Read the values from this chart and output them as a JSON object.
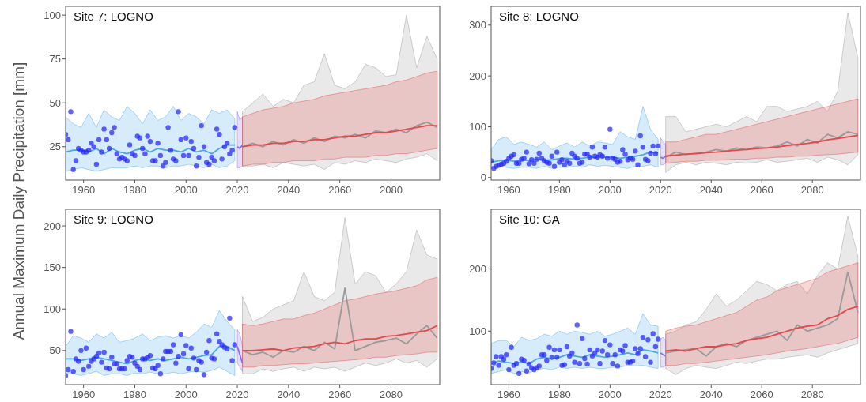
{
  "chart_data": [
    {
      "type": "line",
      "title": "Site 7: LOGNO",
      "ylabel": "Annual Maximum Daily Precipitation [mm]",
      "xlim": [
        1953,
        2099
      ],
      "xticks": [
        1960,
        1980,
        2000,
        2020,
        2040,
        2060,
        2080
      ],
      "ylim": [
        6,
        105
      ],
      "yticks": [
        25,
        50,
        75,
        100
      ],
      "series": [
        {
          "type": "line",
          "color": "#4aa8e8",
          "x": [
            1953,
            1956,
            1959,
            1962,
            1965,
            1968,
            1971,
            1974,
            1977,
            1980,
            1983,
            1986,
            1989,
            1992,
            1995,
            1998,
            2001,
            2004,
            2007,
            2010,
            2013,
            2016,
            2019
          ],
          "values": [
            22,
            23,
            23,
            22,
            24,
            21,
            24,
            22,
            21,
            23,
            24,
            22,
            24,
            23,
            23,
            22,
            24,
            22,
            23,
            21,
            24,
            26,
            26
          ],
          "lower": [
            11,
            12,
            13,
            12,
            11,
            12,
            13,
            13,
            13,
            14,
            13,
            14,
            14,
            13,
            14,
            14,
            15,
            14,
            13,
            15,
            13,
            14,
            17
          ],
          "upper": [
            42,
            38,
            36,
            44,
            36,
            46,
            42,
            40,
            48,
            44,
            38,
            46,
            40,
            42,
            48,
            40,
            44,
            42,
            38,
            46,
            44,
            46,
            41
          ]
        },
        {
          "type": "line",
          "color": "#8a6cf0",
          "x": [
            2020,
            2021,
            2022
          ],
          "values": [
            25,
            24,
            26
          ],
          "lower": [
            13,
            13,
            14
          ],
          "upper": [
            45,
            40,
            42
          ]
        },
        {
          "type": "line",
          "color": "#9a9a9a",
          "x": [
            2022,
            2026,
            2030,
            2034,
            2038,
            2042,
            2046,
            2050,
            2054,
            2058,
            2062,
            2066,
            2070,
            2074,
            2078,
            2082,
            2086,
            2090,
            2094,
            2098
          ],
          "values": [
            25,
            27,
            25,
            28,
            26,
            29,
            27,
            30,
            28,
            31,
            30,
            32,
            30,
            34,
            33,
            35,
            33,
            37,
            39,
            36
          ],
          "lower": [
            14,
            14,
            15,
            13,
            16,
            15,
            14,
            15,
            12,
            16,
            15,
            17,
            16,
            18,
            17,
            16,
            18,
            19,
            21,
            17
          ],
          "upper": [
            45,
            50,
            55,
            48,
            52,
            50,
            60,
            62,
            78,
            60,
            58,
            62,
            72,
            70,
            65,
            66,
            100,
            70,
            88,
            75
          ]
        },
        {
          "type": "line",
          "color": "#e8474a",
          "x": [
            2022,
            2026,
            2030,
            2034,
            2038,
            2042,
            2046,
            2050,
            2054,
            2058,
            2062,
            2066,
            2070,
            2074,
            2078,
            2082,
            2086,
            2090,
            2094,
            2098
          ],
          "values": [
            25,
            26,
            26,
            27,
            27,
            28,
            28,
            29,
            29,
            30,
            31,
            31,
            32,
            33,
            33,
            34,
            35,
            36,
            37,
            37
          ],
          "lower": [
            14,
            15,
            15,
            16,
            16,
            17,
            17,
            17,
            18,
            18,
            19,
            19,
            19,
            20,
            20,
            21,
            21,
            22,
            23,
            24
          ],
          "upper": [
            42,
            44,
            46,
            47,
            48,
            50,
            51,
            52,
            54,
            55,
            56,
            57,
            58,
            59,
            60,
            62,
            63,
            65,
            67,
            68
          ]
        },
        {
          "type": "scatter",
          "color": "#2222ff",
          "marker": "circle",
          "x": [
            1953,
            1954,
            1955,
            1956,
            1957,
            1958,
            1959,
            1960,
            1961,
            1962,
            1963,
            1964,
            1965,
            1966,
            1967,
            1968,
            1969,
            1970,
            1971,
            1972,
            1973,
            1974,
            1975,
            1976,
            1977,
            1978,
            1979,
            1980,
            1981,
            1982,
            1983,
            1984,
            1985,
            1986,
            1987,
            1988,
            1989,
            1990,
            1991,
            1992,
            1993,
            1994,
            1995,
            1996,
            1997,
            1998,
            1999,
            2000,
            2001,
            2002,
            2003,
            2004,
            2005,
            2006,
            2007,
            2008,
            2009,
            2010,
            2011,
            2012,
            2013,
            2014,
            2015,
            2016,
            2017,
            2018,
            2019
          ],
          "values": [
            32,
            29,
            45,
            12,
            17,
            24,
            23,
            22,
            22,
            23,
            27,
            25,
            15,
            29,
            22,
            35,
            29,
            24,
            33,
            36,
            21,
            18,
            19,
            18,
            17,
            26,
            21,
            20,
            31,
            30,
            24,
            21,
            31,
            28,
            17,
            17,
            27,
            20,
            14,
            16,
            36,
            23,
            18,
            17,
            45,
            29,
            20,
            30,
            20,
            28,
            24,
            14,
            19,
            37,
            25,
            16,
            15,
            19,
            17,
            35,
            32,
            18,
            25,
            27,
            21,
            23,
            36
          ]
        }
      ]
    },
    {
      "type": "line",
      "title": "Site 8: LOGNO",
      "xlim": [
        1953,
        2099
      ],
      "xticks": [
        1960,
        1980,
        2000,
        2020,
        2040,
        2060,
        2080
      ],
      "ylim": [
        -5,
        337
      ],
      "yticks": [
        0,
        100,
        200,
        300
      ],
      "series": [
        {
          "type": "line",
          "color": "#4aa8e8",
          "x": [
            1953,
            1956,
            1959,
            1962,
            1965,
            1968,
            1971,
            1974,
            1977,
            1980,
            1983,
            1986,
            1989,
            1992,
            1995,
            1998,
            2001,
            2004,
            2007,
            2010,
            2013,
            2016,
            2019
          ],
          "values": [
            30,
            33,
            34,
            32,
            35,
            33,
            36,
            34,
            35,
            37,
            38,
            36,
            38,
            40,
            39,
            40,
            40,
            38,
            40,
            42,
            45,
            50,
            48
          ],
          "lower": [
            18,
            22,
            20,
            18,
            20,
            20,
            18,
            22,
            18,
            20,
            20,
            22,
            20,
            25,
            22,
            24,
            22,
            20,
            18,
            22,
            22,
            25,
            20
          ],
          "upper": [
            55,
            75,
            80,
            65,
            70,
            65,
            60,
            70,
            55,
            62,
            68,
            60,
            70,
            62,
            70,
            68,
            65,
            90,
            80,
            75,
            140,
            95,
            75
          ]
        },
        {
          "type": "line",
          "color": "#8a6cf0",
          "x": [
            2020,
            2021,
            2022
          ],
          "values": [
            40,
            38,
            42
          ],
          "lower": [
            25,
            25,
            28
          ],
          "upper": [
            78,
            70,
            65
          ]
        },
        {
          "type": "line",
          "color": "#9a9a9a",
          "x": [
            2022,
            2026,
            2030,
            2034,
            2038,
            2042,
            2046,
            2050,
            2054,
            2058,
            2062,
            2066,
            2070,
            2074,
            2078,
            2082,
            2086,
            2090,
            2094,
            2098
          ],
          "values": [
            40,
            50,
            45,
            48,
            50,
            55,
            52,
            58,
            55,
            60,
            58,
            62,
            70,
            62,
            75,
            68,
            85,
            78,
            90,
            85
          ],
          "lower": [
            10,
            25,
            30,
            25,
            30,
            28,
            25,
            30,
            28,
            30,
            35,
            30,
            32,
            35,
            38,
            30,
            40,
            35,
            25,
            45
          ],
          "upper": [
            120,
            120,
            90,
            95,
            100,
            105,
            100,
            110,
            120,
            110,
            140,
            140,
            130,
            135,
            140,
            150,
            130,
            170,
            325,
            235
          ]
        },
        {
          "type": "line",
          "color": "#e8474a",
          "x": [
            2022,
            2026,
            2030,
            2034,
            2038,
            2042,
            2046,
            2050,
            2054,
            2058,
            2062,
            2066,
            2070,
            2074,
            2078,
            2082,
            2086,
            2090,
            2094,
            2098
          ],
          "values": [
            42,
            44,
            46,
            47,
            49,
            50,
            52,
            54,
            55,
            57,
            58,
            60,
            63,
            65,
            67,
            70,
            74,
            77,
            80,
            83
          ],
          "lower": [
            28,
            30,
            32,
            32,
            34,
            34,
            35,
            36,
            36,
            38,
            38,
            40,
            40,
            42,
            42,
            44,
            45,
            46,
            48,
            50
          ],
          "upper": [
            70,
            70,
            75,
            80,
            85,
            85,
            90,
            95,
            100,
            105,
            110,
            115,
            120,
            125,
            130,
            135,
            140,
            145,
            150,
            155
          ]
        },
        {
          "type": "scatter",
          "color": "#2222ff",
          "marker": "circle",
          "x": [
            1953,
            1954,
            1955,
            1956,
            1957,
            1958,
            1959,
            1960,
            1961,
            1962,
            1963,
            1964,
            1965,
            1966,
            1967,
            1968,
            1969,
            1970,
            1971,
            1972,
            1973,
            1974,
            1975,
            1976,
            1977,
            1978,
            1979,
            1980,
            1981,
            1982,
            1983,
            1984,
            1985,
            1986,
            1987,
            1988,
            1989,
            1990,
            1991,
            1992,
            1993,
            1994,
            1995,
            1996,
            1997,
            1998,
            1999,
            2000,
            2001,
            2002,
            2003,
            2004,
            2005,
            2006,
            2007,
            2008,
            2009,
            2010,
            2011,
            2012,
            2013,
            2014,
            2015,
            2016,
            2017,
            2018,
            2019
          ],
          "values": [
            33,
            18,
            22,
            24,
            26,
            28,
            32,
            38,
            42,
            45,
            28,
            28,
            36,
            38,
            50,
            27,
            35,
            28,
            36,
            48,
            38,
            33,
            30,
            28,
            42,
            22,
            50,
            30,
            35,
            25,
            32,
            28,
            48,
            42,
            38,
            28,
            30,
            46,
            46,
            40,
            60,
            42,
            40,
            45,
            42,
            60,
            38,
            95,
            38,
            36,
            30,
            32,
            55,
            46,
            35,
            38,
            36,
            52,
            25,
            82,
            60,
            36,
            33,
            48,
            62,
            47,
            62
          ]
        }
      ]
    },
    {
      "type": "line",
      "title": "Site 9: LOGNO",
      "xlim": [
        1953,
        2099
      ],
      "xticks": [
        1960,
        1980,
        2000,
        2020,
        2040,
        2060,
        2080
      ],
      "ylim": [
        9,
        220
      ],
      "yticks": [
        50,
        100,
        150,
        200
      ],
      "series": [
        {
          "type": "line",
          "color": "#4aa8e8",
          "x": [
            1953,
            1956,
            1959,
            1962,
            1965,
            1968,
            1971,
            1974,
            1977,
            1980,
            1983,
            1986,
            1989,
            1992,
            1995,
            1998,
            2001,
            2004,
            2007,
            2010,
            2013,
            2016,
            2019
          ],
          "values": [
            40,
            40,
            38,
            40,
            42,
            40,
            38,
            36,
            34,
            38,
            40,
            38,
            40,
            38,
            40,
            42,
            40,
            42,
            44,
            45,
            55,
            55,
            50
          ],
          "lower": [
            22,
            22,
            20,
            22,
            25,
            20,
            22,
            22,
            20,
            23,
            22,
            24,
            22,
            22,
            24,
            22,
            24,
            25,
            24,
            26,
            30,
            25,
            20
          ],
          "upper": [
            55,
            68,
            65,
            60,
            70,
            65,
            72,
            60,
            62,
            65,
            70,
            62,
            66,
            68,
            65,
            68,
            65,
            72,
            82,
            78,
            98,
            85,
            75
          ]
        },
        {
          "type": "line",
          "color": "#8a6cf0",
          "x": [
            2020,
            2021,
            2022
          ],
          "values": [
            55,
            45,
            35
          ],
          "lower": [
            35,
            30,
            25
          ],
          "upper": [
            75,
            70,
            55
          ]
        },
        {
          "type": "line",
          "color": "#9a9a9a",
          "x": [
            2022,
            2026,
            2030,
            2034,
            2038,
            2042,
            2046,
            2050,
            2054,
            2058,
            2062,
            2066,
            2070,
            2074,
            2078,
            2082,
            2086,
            2090,
            2094,
            2098
          ],
          "values": [
            50,
            45,
            48,
            42,
            50,
            48,
            55,
            50,
            60,
            52,
            125,
            50,
            55,
            60,
            62,
            65,
            58,
            70,
            80,
            65
          ],
          "lower": [
            22,
            22,
            28,
            25,
            28,
            30,
            25,
            30,
            28,
            30,
            25,
            30,
            35,
            32,
            35,
            40,
            35,
            38,
            30,
            40
          ],
          "upper": [
            115,
            85,
            90,
            100,
            105,
            110,
            145,
            115,
            110,
            120,
            210,
            130,
            145,
            140,
            120,
            130,
            145,
            195,
            165,
            160
          ]
        },
        {
          "type": "line",
          "color": "#e8474a",
          "x": [
            2022,
            2026,
            2030,
            2034,
            2038,
            2042,
            2046,
            2050,
            2054,
            2058,
            2062,
            2066,
            2070,
            2074,
            2078,
            2082,
            2086,
            2090,
            2094,
            2098
          ],
          "values": [
            50,
            50,
            51,
            52,
            50,
            53,
            54,
            55,
            58,
            60,
            58,
            62,
            64,
            64,
            67,
            68,
            70,
            72,
            74,
            80
          ],
          "lower": [
            30,
            30,
            32,
            32,
            33,
            34,
            34,
            35,
            36,
            37,
            38,
            39,
            40,
            42,
            42,
            44,
            45,
            46,
            48,
            48
          ],
          "upper": [
            82,
            80,
            82,
            85,
            88,
            88,
            92,
            95,
            100,
            105,
            110,
            112,
            115,
            118,
            120,
            122,
            125,
            128,
            135,
            138
          ]
        },
        {
          "type": "scatter",
          "color": "#2222ff",
          "marker": "circle",
          "x": [
            1953,
            1954,
            1955,
            1956,
            1957,
            1958,
            1959,
            1960,
            1961,
            1962,
            1963,
            1964,
            1965,
            1966,
            1967,
            1968,
            1969,
            1970,
            1971,
            1972,
            1973,
            1974,
            1975,
            1976,
            1977,
            1978,
            1979,
            1980,
            1981,
            1982,
            1983,
            1984,
            1985,
            1986,
            1987,
            1988,
            1989,
            1990,
            1991,
            1992,
            1993,
            1994,
            1995,
            1996,
            1997,
            1998,
            1999,
            2000,
            2001,
            2002,
            2003,
            2004,
            2005,
            2006,
            2007,
            2008,
            2009,
            2010,
            2011,
            2012,
            2013,
            2014,
            2015,
            2016,
            2017,
            2018,
            2019
          ],
          "values": [
            20,
            27,
            73,
            25,
            40,
            37,
            50,
            27,
            53,
            31,
            37,
            40,
            43,
            47,
            36,
            48,
            29,
            28,
            42,
            34,
            34,
            28,
            28,
            28,
            38,
            43,
            42,
            35,
            31,
            27,
            40,
            40,
            42,
            44,
            29,
            28,
            32,
            22,
            40,
            49,
            49,
            49,
            57,
            35,
            43,
            69,
            46,
            56,
            28,
            53,
            41,
            27,
            38,
            36,
            21,
            48,
            62,
            41,
            40,
            70,
            61,
            57,
            54,
            52,
            89,
            38,
            57
          ]
        }
      ]
    },
    {
      "type": "line",
      "title": "Site 10: GA",
      "xlim": [
        1953,
        2099
      ],
      "xticks": [
        1960,
        1980,
        2000,
        2020,
        2040,
        2060,
        2080
      ],
      "ylim": [
        14,
        296
      ],
      "yticks": [
        100,
        200
      ],
      "series": [
        {
          "type": "line",
          "color": "#4aa8e8",
          "x": [
            1953,
            1956,
            1959,
            1962,
            1965,
            1968,
            1971,
            1974,
            1977,
            1980,
            1983,
            1986,
            1989,
            1992,
            1995,
            1998,
            2001,
            2004,
            2007,
            2010,
            2013,
            2016,
            2019
          ],
          "values": [
            48,
            52,
            50,
            48,
            50,
            48,
            55,
            58,
            55,
            58,
            62,
            60,
            58,
            62,
            60,
            58,
            60,
            62,
            65,
            62,
            70,
            68,
            65
          ],
          "lower": [
            32,
            35,
            38,
            32,
            35,
            33,
            38,
            40,
            38,
            42,
            40,
            42,
            40,
            42,
            40,
            40,
            42,
            42,
            45,
            44,
            45,
            42,
            40
          ],
          "upper": [
            80,
            85,
            85,
            75,
            90,
            85,
            88,
            95,
            92,
            100,
            95,
            100,
            98,
            95,
            100,
            92,
            95,
            100,
            105,
            95,
            128,
            110,
            108
          ]
        },
        {
          "type": "line",
          "color": "#8a6cf0",
          "x": [
            2020,
            2021,
            2022
          ],
          "values": [
            65,
            62,
            60
          ],
          "lower": [
            42,
            42,
            44
          ],
          "upper": [
            88,
            90,
            85
          ]
        },
        {
          "type": "line",
          "color": "#9a9a9a",
          "x": [
            2022,
            2026,
            2030,
            2034,
            2038,
            2042,
            2046,
            2050,
            2054,
            2058,
            2062,
            2066,
            2070,
            2074,
            2078,
            2082,
            2086,
            2090,
            2094,
            2098
          ],
          "values": [
            65,
            68,
            70,
            72,
            60,
            75,
            80,
            75,
            85,
            90,
            95,
            100,
            85,
            110,
            100,
            105,
            110,
            120,
            195,
            130
          ],
          "lower": [
            40,
            30,
            40,
            45,
            42,
            40,
            45,
            50,
            48,
            52,
            55,
            55,
            58,
            60,
            62,
            58,
            65,
            70,
            75,
            80
          ],
          "upper": [
            95,
            100,
            110,
            115,
            135,
            160,
            140,
            150,
            165,
            180,
            175,
            165,
            175,
            180,
            160,
            190,
            210,
            200,
            285,
            220
          ]
        },
        {
          "type": "line",
          "color": "#e8474a",
          "x": [
            2022,
            2026,
            2030,
            2034,
            2038,
            2042,
            2046,
            2050,
            2054,
            2058,
            2062,
            2066,
            2070,
            2074,
            2078,
            2082,
            2086,
            2090,
            2094,
            2098
          ],
          "values": [
            68,
            70,
            68,
            72,
            75,
            75,
            78,
            80,
            85,
            88,
            90,
            95,
            100,
            105,
            108,
            110,
            120,
            125,
            135,
            140
          ],
          "lower": [
            45,
            45,
            48,
            48,
            50,
            52,
            54,
            56,
            58,
            60,
            62,
            65,
            68,
            70,
            72,
            75,
            78,
            80,
            85,
            90
          ],
          "upper": [
            100,
            105,
            108,
            110,
            115,
            120,
            125,
            130,
            140,
            150,
            155,
            165,
            170,
            175,
            180,
            185,
            195,
            200,
            205,
            210
          ]
        },
        {
          "type": "scatter",
          "color": "#2222ff",
          "marker": "circle",
          "x": [
            1953,
            1954,
            1955,
            1956,
            1957,
            1958,
            1959,
            1960,
            1961,
            1962,
            1963,
            1964,
            1965,
            1966,
            1967,
            1968,
            1969,
            1970,
            1971,
            1972,
            1973,
            1974,
            1975,
            1976,
            1977,
            1978,
            1979,
            1980,
            1981,
            1982,
            1983,
            1984,
            1985,
            1986,
            1987,
            1988,
            1989,
            1990,
            1991,
            1992,
            1993,
            1994,
            1995,
            1996,
            1997,
            1998,
            1999,
            2000,
            2001,
            2002,
            2003,
            2004,
            2005,
            2006,
            2007,
            2008,
            2009,
            2010,
            2011,
            2012,
            2013,
            2014,
            2015,
            2016,
            2017,
            2018,
            2019
          ],
          "values": [
            40,
            49,
            59,
            45,
            59,
            55,
            62,
            38,
            74,
            45,
            48,
            32,
            55,
            53,
            36,
            47,
            41,
            38,
            41,
            44,
            62,
            62,
            53,
            74,
            58,
            70,
            58,
            70,
            45,
            46,
            75,
            60,
            65,
            50,
            110,
            48,
            88,
            56,
            47,
            70,
            60,
            65,
            70,
            48,
            68,
            85,
            62,
            78,
            48,
            62,
            44,
            70,
            68,
            77,
            50,
            50,
            52,
            72,
            64,
            72,
            90,
            59,
            86,
            50,
            96,
            75,
            87
          ]
        }
      ]
    }
  ]
}
